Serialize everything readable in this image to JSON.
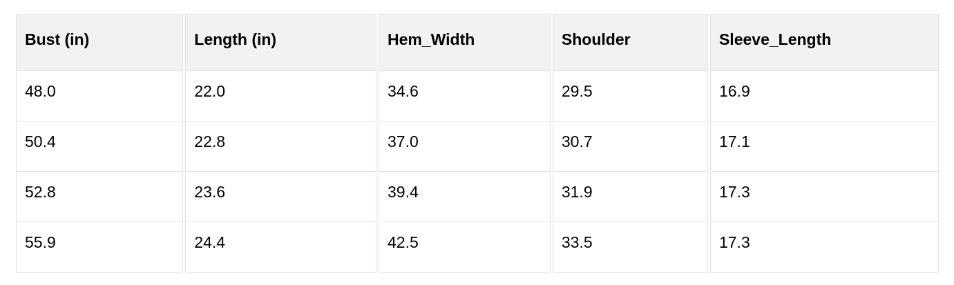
{
  "table": {
    "columns": [
      {
        "label": "Bust (in)"
      },
      {
        "label": "Length (in)"
      },
      {
        "label": "Hem_Width"
      },
      {
        "label": "Shoulder"
      },
      {
        "label": "Sleeve_Length"
      }
    ],
    "rows": [
      [
        "48.0",
        "22.0",
        "34.6",
        "29.5",
        "16.9"
      ],
      [
        "50.4",
        "22.8",
        "37.0",
        "30.7",
        "17.1"
      ],
      [
        "52.8",
        "23.6",
        "39.4",
        "31.9",
        "17.3"
      ],
      [
        "55.9",
        "24.4",
        "42.5",
        "33.5",
        "17.3"
      ]
    ],
    "colors": {
      "header_background": "#f2f2f2",
      "cell_background": "#ffffff",
      "border": "#e1e1e1",
      "text": "#000000"
    }
  }
}
